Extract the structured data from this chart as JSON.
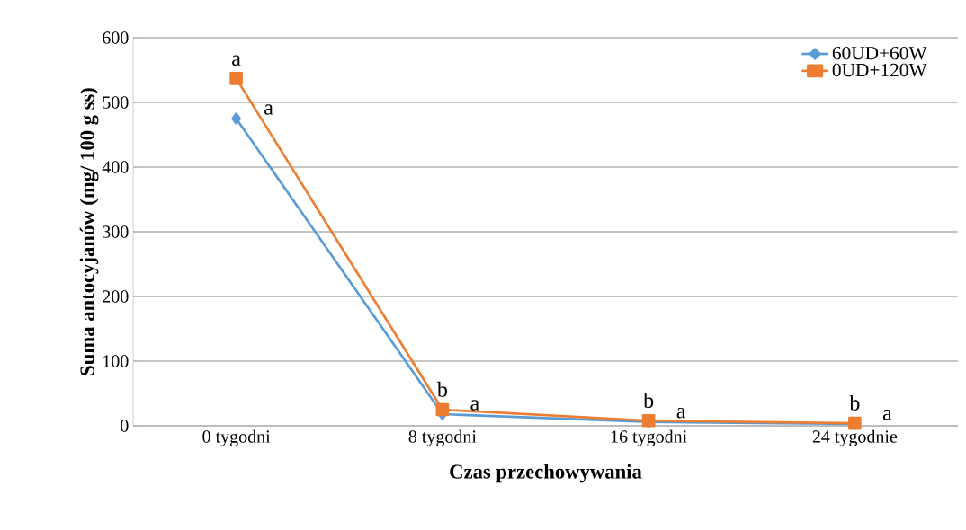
{
  "chart_data": {
    "type": "line",
    "xlabel": "Czas przechowywania",
    "ylabel": "Suma antocyjanów (mg/ 100 g ss)",
    "categories": [
      "0 tygodni",
      "8 tygodni",
      "16 tygodni",
      "24 tygodnie"
    ],
    "series": [
      {
        "name": "60UD+60W",
        "color": "#5b9bd5",
        "marker": "diamond",
        "values": [
          475,
          18,
          6,
          3
        ]
      },
      {
        "name": "0UD+120W",
        "color": "#ed7d31",
        "marker": "square",
        "values": [
          537,
          25,
          8,
          4
        ]
      }
    ],
    "ylim": [
      0,
      600
    ],
    "yticks": [
      0,
      100,
      200,
      300,
      400,
      500,
      600
    ],
    "grid": "y",
    "legend": "top right",
    "annotations": [
      {
        "text": "a",
        "x": "0 tygodni",
        "y": 537
      },
      {
        "text": "a",
        "x": "0 tygodni",
        "y": 475
      },
      {
        "text": "b",
        "x": "8 tygodni",
        "y": 25
      },
      {
        "text": "a",
        "x": "8 tygodni",
        "y": 18
      },
      {
        "text": "b",
        "x": "16 tygodni",
        "y": 8
      },
      {
        "text": "a",
        "x": "16 tygodni",
        "y": 6
      },
      {
        "text": "b",
        "x": "24 tygodnie",
        "y": 4
      },
      {
        "text": "a",
        "x": "24 tygodnie",
        "y": 3
      }
    ]
  }
}
